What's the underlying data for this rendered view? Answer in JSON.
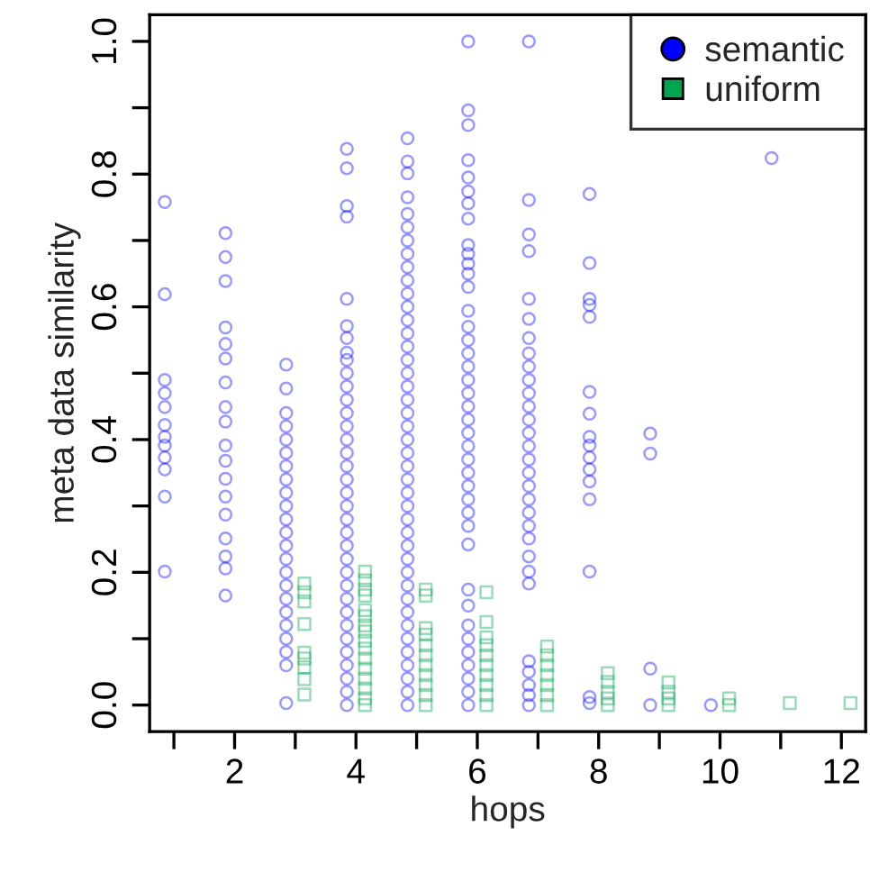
{
  "chart_data": {
    "type": "scatter",
    "xlabel": "hops",
    "ylabel": "meta data similarity",
    "xlim": [
      0.6,
      12.4
    ],
    "ylim": [
      -0.04,
      1.04
    ],
    "xticks": [
      {
        "value": 1,
        "label": null
      },
      2,
      {
        "value": 3,
        "label": null
      },
      4,
      {
        "value": 5,
        "label": null
      },
      6,
      {
        "value": 7,
        "label": null
      },
      8,
      {
        "value": 9,
        "label": null
      },
      10,
      {
        "value": 11,
        "label": null
      },
      12
    ],
    "yticks": [
      {
        "value": 0,
        "label": "0.0"
      },
      {
        "value": 0.1,
        "label": null
      },
      {
        "value": 0.2,
        "label": "0.2"
      },
      {
        "value": 0.3,
        "label": null
      },
      {
        "value": 0.4,
        "label": "0.4"
      },
      {
        "value": 0.5,
        "label": null
      },
      {
        "value": 0.6,
        "label": "0.6"
      },
      {
        "value": 0.7,
        "label": null
      },
      {
        "value": 0.8,
        "label": "0.8"
      },
      {
        "value": 0.9,
        "label": null
      },
      {
        "value": 1.0,
        "label": "1.0"
      }
    ],
    "legend": "top right",
    "series": [
      {
        "name": "semantic",
        "color": "#0000ff",
        "marker": "circle",
        "x": [
          0.85,
          0.85,
          0.85,
          0.85,
          0.85,
          0.85,
          0.85,
          0.85,
          0.85,
          0.85,
          0.85,
          0.85,
          1.85,
          1.85,
          1.85,
          1.85,
          1.85,
          1.85,
          1.85,
          1.85,
          1.85,
          1.85,
          1.85,
          1.85,
          1.85,
          1.85,
          1.85,
          1.85,
          1.85,
          1.85,
          2.85,
          2.85,
          2.85,
          2.85,
          2.85,
          2.85,
          2.85,
          2.85,
          2.85,
          2.85,
          2.85,
          2.85,
          2.85,
          2.85,
          2.85,
          2.85,
          2.85,
          2.85,
          2.85,
          2.85,
          2.85,
          2.85,
          2.85,
          3.85,
          3.85,
          3.85,
          3.85,
          3.85,
          3.85,
          3.85,
          3.85,
          3.85,
          3.85,
          3.85,
          3.85,
          3.85,
          3.85,
          3.85,
          3.85,
          3.85,
          3.85,
          3.85,
          3.85,
          3.85,
          3.85,
          3.85,
          3.85,
          3.85,
          3.85,
          3.85,
          3.85,
          3.85,
          3.85,
          3.85,
          3.85,
          3.85,
          3.85,
          3.85,
          4.85,
          4.85,
          4.85,
          4.85,
          4.85,
          4.85,
          4.85,
          4.85,
          4.85,
          4.85,
          4.85,
          4.85,
          4.85,
          4.85,
          4.85,
          4.85,
          4.85,
          4.85,
          4.85,
          4.85,
          4.85,
          4.85,
          4.85,
          4.85,
          4.85,
          4.85,
          4.85,
          4.85,
          4.85,
          4.85,
          4.85,
          4.85,
          4.85,
          4.85,
          4.85,
          4.85,
          4.85,
          4.85,
          4.85,
          4.85,
          4.85,
          4.85,
          5.85,
          5.85,
          5.85,
          5.85,
          5.85,
          5.85,
          5.85,
          5.85,
          5.85,
          5.85,
          5.85,
          5.85,
          5.85,
          5.85,
          5.85,
          5.85,
          5.85,
          5.85,
          5.85,
          5.85,
          5.85,
          5.85,
          5.85,
          5.85,
          5.85,
          5.85,
          5.85,
          5.85,
          5.85,
          5.85,
          5.85,
          5.85,
          5.85,
          5.85,
          5.85,
          5.85,
          5.85,
          5.85,
          5.85,
          5.85,
          6.85,
          6.85,
          6.85,
          6.85,
          6.85,
          6.85,
          6.85,
          6.85,
          6.85,
          6.85,
          6.85,
          6.85,
          6.85,
          6.85,
          6.85,
          6.85,
          6.85,
          6.85,
          6.85,
          6.85,
          6.85,
          6.85,
          6.85,
          6.85,
          6.85,
          6.85,
          6.85,
          6.85,
          6.85,
          6.85,
          7.85,
          7.85,
          7.85,
          7.85,
          7.85,
          7.85,
          7.85,
          7.85,
          7.85,
          7.85,
          7.85,
          7.85,
          7.85,
          7.85,
          7.85,
          7.85,
          8.85,
          8.85,
          8.85,
          8.85,
          9.85,
          10.85
        ],
        "values": [
          0.758,
          0.619,
          0.49,
          0.47,
          0.449,
          0.422,
          0.404,
          0.391,
          0.373,
          0.355,
          0.314,
          0.201,
          0.711,
          0.675,
          0.639,
          0.569,
          0.544,
          0.522,
          0.486,
          0.449,
          0.427,
          0.391,
          0.368,
          0.341,
          0.314,
          0.287,
          0.251,
          0.224,
          0.206,
          0.165,
          0.513,
          0.477,
          0.44,
          0.42,
          0.4,
          0.38,
          0.36,
          0.34,
          0.32,
          0.3,
          0.28,
          0.26,
          0.24,
          0.22,
          0.2,
          0.18,
          0.16,
          0.14,
          0.12,
          0.1,
          0.08,
          0.06,
          0.003,
          0.838,
          0.809,
          0.752,
          0.736,
          0.612,
          0.571,
          0.553,
          0.531,
          0.52,
          0.5,
          0.48,
          0.46,
          0.44,
          0.42,
          0.4,
          0.38,
          0.36,
          0.34,
          0.32,
          0.3,
          0.28,
          0.26,
          0.24,
          0.22,
          0.2,
          0.18,
          0.16,
          0.14,
          0.12,
          0.1,
          0.08,
          0.06,
          0.04,
          0.02,
          0.0,
          0.854,
          0.819,
          0.801,
          0.765,
          0.74,
          0.72,
          0.7,
          0.68,
          0.66,
          0.64,
          0.62,
          0.6,
          0.58,
          0.56,
          0.54,
          0.52,
          0.5,
          0.48,
          0.46,
          0.44,
          0.42,
          0.4,
          0.38,
          0.36,
          0.34,
          0.32,
          0.3,
          0.28,
          0.26,
          0.24,
          0.22,
          0.2,
          0.18,
          0.16,
          0.14,
          0.12,
          0.1,
          0.08,
          0.06,
          0.04,
          0.02,
          0.0,
          1.0,
          0.896,
          0.874,
          0.821,
          0.795,
          0.774,
          0.756,
          0.733,
          0.693,
          0.68,
          0.665,
          0.65,
          0.63,
          0.594,
          0.57,
          0.55,
          0.53,
          0.51,
          0.49,
          0.47,
          0.45,
          0.43,
          0.41,
          0.39,
          0.37,
          0.35,
          0.33,
          0.31,
          0.29,
          0.27,
          0.242,
          0.174,
          0.15,
          0.12,
          0.1,
          0.08,
          0.06,
          0.04,
          0.02,
          0.0,
          1.0,
          0.761,
          0.709,
          0.684,
          0.612,
          0.582,
          0.553,
          0.53,
          0.51,
          0.49,
          0.47,
          0.45,
          0.43,
          0.41,
          0.39,
          0.37,
          0.35,
          0.33,
          0.31,
          0.29,
          0.27,
          0.251,
          0.224,
          0.201,
          0.183,
          0.066,
          0.05,
          0.03,
          0.015,
          0.0,
          0.77,
          0.666,
          0.612,
          0.603,
          0.585,
          0.472,
          0.439,
          0.404,
          0.391,
          0.373,
          0.355,
          0.337,
          0.31,
          0.201,
          0.012,
          0.003,
          0.409,
          0.379,
          0.055,
          0.0,
          0.0,
          0.824
        ]
      },
      {
        "name": "uniform",
        "color": "#00a550",
        "marker": "square",
        "x": [
          3.15,
          3.15,
          3.15,
          3.15,
          3.15,
          3.15,
          3.15,
          3.15,
          3.15,
          4.15,
          4.15,
          4.15,
          4.15,
          4.15,
          4.15,
          4.15,
          4.15,
          4.15,
          4.15,
          4.15,
          4.15,
          4.15,
          4.15,
          4.15,
          4.15,
          5.15,
          5.15,
          5.15,
          5.15,
          5.15,
          5.15,
          5.15,
          5.15,
          5.15,
          5.15,
          5.15,
          6.15,
          6.15,
          6.15,
          6.15,
          6.15,
          6.15,
          6.15,
          6.15,
          6.15,
          6.15,
          7.15,
          7.15,
          7.15,
          7.15,
          7.15,
          7.15,
          7.15,
          8.15,
          8.15,
          8.15,
          8.15,
          8.15,
          9.15,
          9.15,
          9.15,
          9.15,
          10.15,
          10.15,
          11.15,
          12.15
        ],
        "values": [
          0.183,
          0.17,
          0.156,
          0.122,
          0.079,
          0.07,
          0.057,
          0.039,
          0.016,
          0.201,
          0.188,
          0.174,
          0.165,
          0.143,
          0.134,
          0.12,
          0.111,
          0.097,
          0.085,
          0.07,
          0.055,
          0.04,
          0.025,
          0.01,
          0.0,
          0.174,
          0.165,
          0.116,
          0.106,
          0.09,
          0.075,
          0.06,
          0.045,
          0.03,
          0.015,
          0.0,
          0.17,
          0.125,
          0.102,
          0.09,
          0.075,
          0.06,
          0.045,
          0.03,
          0.015,
          0.0,
          0.088,
          0.075,
          0.06,
          0.045,
          0.03,
          0.015,
          0.0,
          0.048,
          0.035,
          0.02,
          0.01,
          0.0,
          0.034,
          0.02,
          0.01,
          0.0,
          0.01,
          0.0,
          0.003,
          0.003
        ]
      }
    ]
  }
}
